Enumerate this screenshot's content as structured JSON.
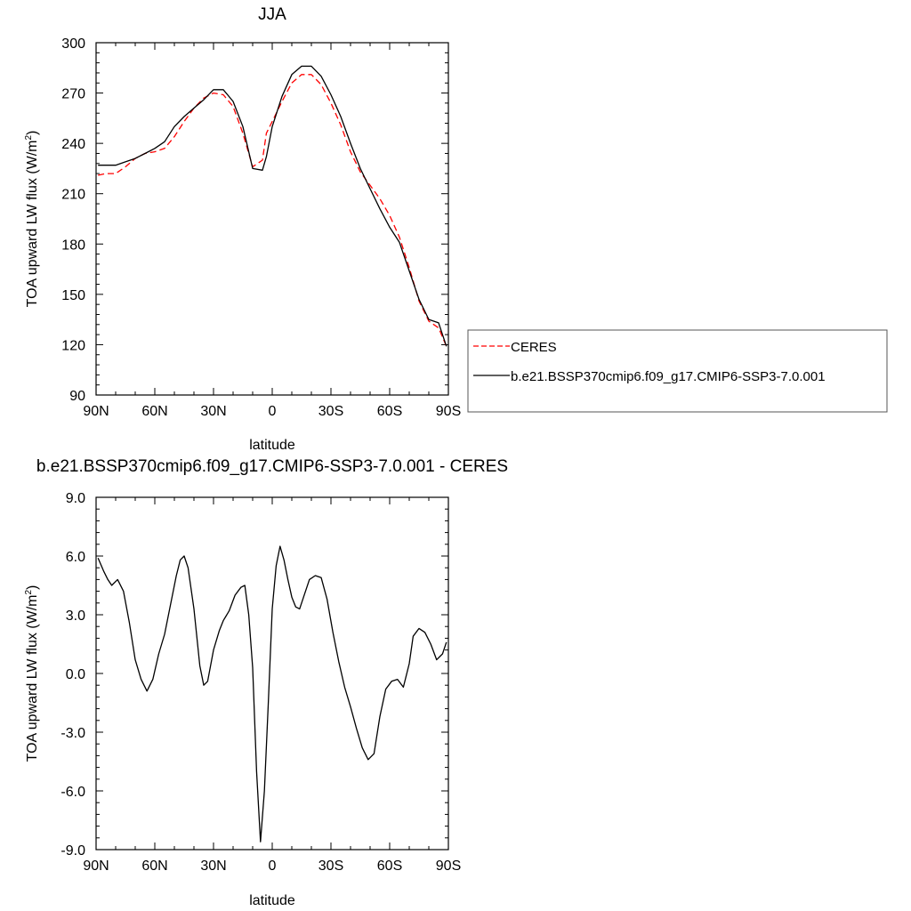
{
  "chart_data": [
    {
      "type": "line",
      "title": "JJA",
      "xlabel": "latitude",
      "ylabel_prefix": "TOA upward LW flux (W/m",
      "ylabel_sup": "2",
      "ylabel_suffix": ")",
      "xlim": [
        90,
        -90
      ],
      "ylim": [
        90,
        300
      ],
      "x_ticks": [
        90,
        60,
        30,
        0,
        -30,
        -60,
        -90
      ],
      "x_tick_labels": [
        "90N",
        "60N",
        "30N",
        "0",
        "30S",
        "60S",
        "90S"
      ],
      "y_ticks": [
        90,
        120,
        150,
        180,
        210,
        240,
        270,
        300
      ],
      "y_tick_labels": [
        "90",
        "120",
        "150",
        "180",
        "210",
        "240",
        "270",
        "300"
      ],
      "legend": {
        "placement": "right"
      },
      "series": [
        {
          "name": "CERES",
          "color": "#ff0000",
          "dash": "dashed",
          "x": [
            89,
            85,
            80,
            75,
            70,
            65,
            60,
            55,
            50,
            45,
            40,
            35,
            30,
            25,
            20,
            15,
            10,
            5,
            3,
            0,
            -5,
            -10,
            -15,
            -20,
            -25,
            -30,
            -35,
            -40,
            -45,
            -50,
            -55,
            -60,
            -65,
            -70,
            -75,
            -80,
            -85,
            -89
          ],
          "y": [
            221,
            222,
            222,
            226,
            231,
            234,
            235,
            237,
            244,
            253,
            261,
            267,
            270,
            269,
            262,
            246,
            226,
            230,
            246,
            253,
            265,
            276,
            281,
            281,
            275,
            264,
            251,
            235,
            223,
            215,
            207,
            197,
            184,
            166,
            146,
            134,
            130,
            119
          ]
        },
        {
          "name": "b.e21.BSSP370cmip6.f09_g17.CMIP6-SSP3-7.0.001",
          "color": "#000000",
          "dash": "solid",
          "x": [
            89,
            85,
            80,
            75,
            70,
            65,
            60,
            55,
            50,
            45,
            40,
            35,
            30,
            25,
            20,
            15,
            10,
            5,
            3,
            0,
            -5,
            -10,
            -15,
            -20,
            -25,
            -30,
            -35,
            -40,
            -45,
            -50,
            -55,
            -60,
            -65,
            -70,
            -75,
            -80,
            -85,
            -89
          ],
          "y": [
            227,
            227,
            227,
            229,
            231,
            234,
            237,
            241,
            250,
            256,
            261,
            266,
            272,
            272,
            265,
            250,
            225,
            224,
            232,
            250,
            268,
            281,
            286,
            286,
            280,
            269,
            256,
            240,
            225,
            213,
            201,
            190,
            181,
            164,
            147,
            135,
            133,
            119
          ]
        }
      ]
    },
    {
      "type": "line",
      "title": "b.e21.BSSP370cmip6.f09_g17.CMIP6-SSP3-7.0.001 - CERES",
      "xlabel": "latitude",
      "ylabel_prefix": "TOA upward LW flux (W/m",
      "ylabel_sup": "2",
      "ylabel_suffix": ")",
      "xlim": [
        90,
        -90
      ],
      "ylim": [
        -9,
        9
      ],
      "x_ticks": [
        90,
        60,
        30,
        0,
        -30,
        -60,
        -90
      ],
      "x_tick_labels": [
        "90N",
        "60N",
        "30N",
        "0",
        "30S",
        "60S",
        "90S"
      ],
      "y_ticks": [
        -9,
        -6,
        -3,
        0,
        3,
        6,
        9
      ],
      "y_tick_labels": [
        "-9.0",
        "-6.0",
        "-3.0",
        "0.0",
        "3.0",
        "6.0",
        "9.0"
      ],
      "series": [
        {
          "color": "#000000",
          "dash": "solid",
          "x": [
            89,
            86,
            84,
            82,
            79,
            76,
            73,
            70,
            67,
            64,
            61,
            58,
            55,
            52,
            49,
            47,
            45,
            43,
            40,
            37,
            35,
            33,
            30,
            27,
            25,
            22,
            19,
            16,
            14,
            12,
            10,
            8,
            6,
            4,
            2,
            0,
            -2,
            -4,
            -6,
            -8,
            -10,
            -12,
            -14,
            -16,
            -19,
            -22,
            -25,
            -28,
            -31,
            -34,
            -37,
            -40,
            -43,
            -46,
            -49,
            -52,
            -55,
            -58,
            -61,
            -64,
            -67,
            -70,
            -72,
            -75,
            -78,
            -81,
            -84,
            -87,
            -89
          ],
          "y": [
            5.9,
            5.2,
            4.8,
            4.5,
            4.8,
            4.2,
            2.6,
            0.7,
            -0.3,
            -0.9,
            -0.3,
            1.0,
            2.0,
            3.5,
            5.0,
            5.8,
            6.0,
            5.4,
            3.3,
            0.4,
            -0.6,
            -0.4,
            1.2,
            2.2,
            2.7,
            3.2,
            4.0,
            4.4,
            4.5,
            3.0,
            0.3,
            -5.0,
            -8.6,
            -6.0,
            -1.5,
            3.3,
            5.5,
            6.5,
            5.8,
            4.8,
            3.9,
            3.4,
            3.3,
            3.9,
            4.8,
            5.0,
            4.9,
            3.8,
            2.1,
            0.6,
            -0.7,
            -1.7,
            -2.8,
            -3.8,
            -4.4,
            -4.1,
            -2.2,
            -0.8,
            -0.4,
            -0.3,
            -0.7,
            0.5,
            1.9,
            2.3,
            2.1,
            1.5,
            0.7,
            1.0,
            1.6
          ]
        }
      ]
    }
  ]
}
